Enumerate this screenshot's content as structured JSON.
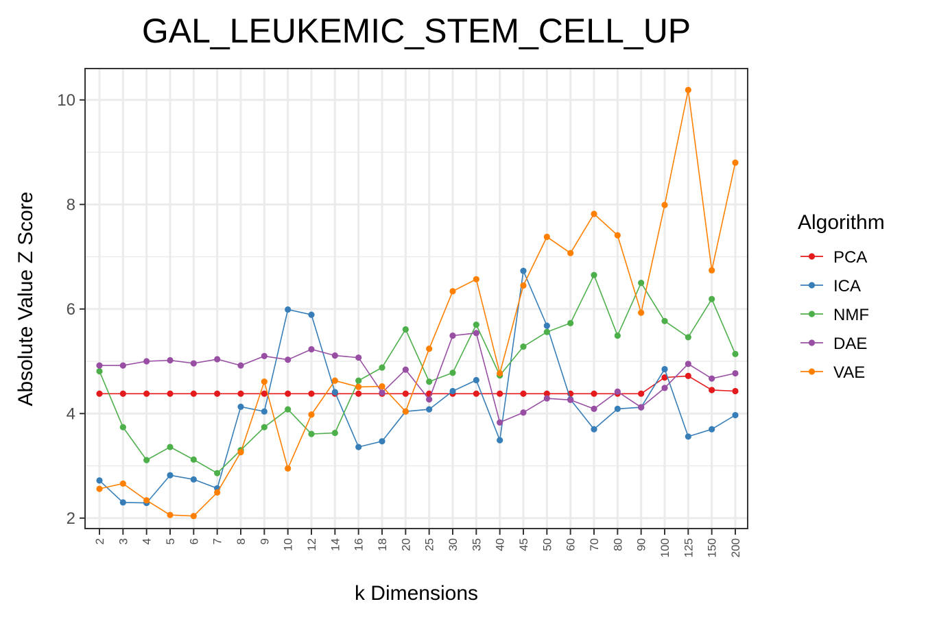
{
  "chart_data": {
    "type": "line",
    "title": "GAL_LEUKEMIC_STEM_CELL_UP",
    "xlabel": "k Dimensions",
    "ylabel": "Absolute Value Z Score",
    "categories": [
      "2",
      "3",
      "4",
      "5",
      "6",
      "7",
      "8",
      "9",
      "10",
      "12",
      "14",
      "16",
      "18",
      "20",
      "25",
      "30",
      "35",
      "40",
      "45",
      "50",
      "60",
      "70",
      "80",
      "90",
      "100",
      "125",
      "150",
      "200"
    ],
    "yticks": [
      2,
      4,
      6,
      8,
      10
    ],
    "ylim": [
      1.8,
      10.6
    ],
    "grid": true,
    "legend": {
      "title": "Algorithm",
      "position": "right"
    },
    "series": [
      {
        "name": "PCA",
        "color": "#e41a1c",
        "values": [
          4.38,
          4.38,
          4.38,
          4.38,
          4.38,
          4.38,
          4.38,
          4.38,
          4.38,
          4.38,
          4.38,
          4.38,
          4.38,
          4.38,
          4.38,
          4.38,
          4.38,
          4.38,
          4.38,
          4.38,
          4.38,
          4.38,
          4.38,
          4.38,
          4.69,
          4.72,
          4.45,
          4.43
        ]
      },
      {
        "name": "ICA",
        "color": "#377eb8",
        "values": [
          2.72,
          2.3,
          2.29,
          2.82,
          2.74,
          2.57,
          4.13,
          4.04,
          5.99,
          5.89,
          4.41,
          3.36,
          3.47,
          4.04,
          4.08,
          4.43,
          4.64,
          3.49,
          6.73,
          5.68,
          4.27,
          3.7,
          4.09,
          4.12,
          4.85,
          3.56,
          3.7,
          3.97
        ]
      },
      {
        "name": "NMF",
        "color": "#4daf4a",
        "values": [
          4.81,
          3.74,
          3.11,
          3.36,
          3.12,
          2.86,
          3.3,
          3.74,
          4.08,
          3.61,
          3.63,
          4.63,
          4.88,
          5.61,
          4.61,
          4.78,
          5.7,
          4.73,
          5.28,
          5.56,
          5.73,
          6.65,
          5.49,
          6.5,
          5.77,
          5.46,
          6.19,
          5.14
        ]
      },
      {
        "name": "DAE",
        "color": "#984ea3",
        "values": [
          4.92,
          4.92,
          5.0,
          5.02,
          4.96,
          5.04,
          4.92,
          5.1,
          5.03,
          5.23,
          5.11,
          5.07,
          4.4,
          4.84,
          4.27,
          5.49,
          5.54,
          3.83,
          4.02,
          4.29,
          4.26,
          4.09,
          4.42,
          4.12,
          4.49,
          4.95,
          4.67,
          4.77
        ]
      },
      {
        "name": "VAE",
        "color": "#ff7f00",
        "values": [
          2.56,
          2.66,
          2.34,
          2.06,
          2.04,
          2.49,
          3.26,
          4.61,
          2.95,
          3.98,
          4.63,
          4.51,
          4.52,
          4.04,
          5.24,
          6.34,
          6.57,
          4.77,
          6.45,
          7.38,
          7.07,
          7.82,
          7.41,
          5.93,
          7.99,
          10.19,
          6.74,
          8.8
        ]
      }
    ]
  }
}
